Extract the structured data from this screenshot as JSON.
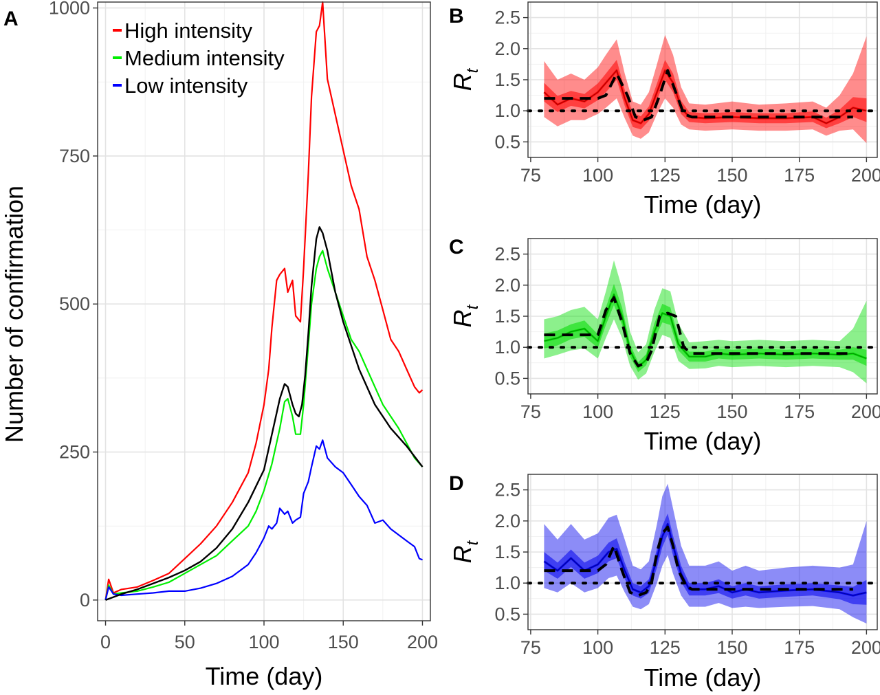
{
  "chart_data": [
    {
      "panel": "A",
      "type": "line",
      "xlabel": "Time (day)",
      "ylabel": "Number of confirmation",
      "xlim": [
        -5,
        205
      ],
      "ylim": [
        -35,
        1010
      ],
      "xticks": [
        0,
        50,
        100,
        150,
        200
      ],
      "yticks": [
        0,
        250,
        500,
        750,
        1000
      ],
      "grid": true,
      "legend_position": "top-left",
      "series": [
        {
          "name": "High intensity",
          "color": "#ff0000",
          "x": [
            0,
            2,
            5,
            10,
            20,
            30,
            40,
            50,
            60,
            70,
            80,
            90,
            95,
            100,
            103,
            105,
            108,
            110,
            113,
            115,
            118,
            120,
            123,
            125,
            128,
            130,
            133,
            135,
            137,
            140,
            145,
            150,
            155,
            160,
            165,
            170,
            175,
            180,
            185,
            190,
            195,
            198,
            200
          ],
          "y": [
            0,
            35,
            12,
            18,
            22,
            33,
            45,
            70,
            95,
            125,
            165,
            215,
            265,
            330,
            390,
            460,
            540,
            550,
            560,
            520,
            540,
            480,
            470,
            560,
            720,
            850,
            960,
            970,
            1010,
            880,
            820,
            760,
            700,
            660,
            580,
            540,
            490,
            440,
            420,
            390,
            360,
            350,
            355
          ]
        },
        {
          "name": "Medium intensity",
          "color": "#00ee00",
          "x": [
            0,
            2,
            5,
            10,
            20,
            30,
            40,
            50,
            60,
            70,
            80,
            90,
            95,
            100,
            105,
            110,
            113,
            115,
            118,
            120,
            123,
            125,
            128,
            130,
            133,
            135,
            137,
            140,
            145,
            150,
            155,
            160,
            165,
            170,
            175,
            180,
            185,
            190,
            195,
            200
          ],
          "y": [
            0,
            25,
            10,
            12,
            15,
            22,
            30,
            45,
            60,
            75,
            100,
            125,
            150,
            185,
            230,
            290,
            335,
            340,
            310,
            280,
            280,
            330,
            430,
            500,
            560,
            580,
            590,
            560,
            520,
            480,
            440,
            420,
            390,
            360,
            330,
            310,
            290,
            265,
            240,
            225
          ]
        },
        {
          "name": "Low intensity",
          "color": "#0000ff",
          "x": [
            0,
            2,
            5,
            10,
            20,
            30,
            40,
            50,
            60,
            70,
            80,
            90,
            95,
            100,
            103,
            105,
            108,
            110,
            113,
            115,
            118,
            120,
            123,
            125,
            128,
            130,
            133,
            135,
            137,
            140,
            145,
            150,
            155,
            160,
            165,
            170,
            175,
            180,
            185,
            190,
            195,
            198,
            200
          ],
          "y": [
            0,
            22,
            10,
            8,
            10,
            12,
            15,
            15,
            20,
            28,
            40,
            60,
            80,
            105,
            125,
            120,
            130,
            155,
            145,
            150,
            130,
            135,
            140,
            180,
            200,
            225,
            260,
            255,
            270,
            240,
            225,
            215,
            195,
            175,
            160,
            130,
            135,
            120,
            110,
            100,
            90,
            70,
            68
          ]
        },
        {
          "color": "#000000",
          "x": [
            0,
            10,
            20,
            30,
            40,
            50,
            60,
            70,
            80,
            90,
            100,
            105,
            110,
            113,
            115,
            118,
            120,
            122,
            124,
            126,
            128,
            130,
            133,
            135,
            137,
            140,
            145,
            150,
            160,
            170,
            180,
            190,
            200
          ],
          "y": [
            0,
            10,
            18,
            28,
            38,
            50,
            65,
            88,
            120,
            165,
            220,
            280,
            340,
            365,
            360,
            330,
            315,
            310,
            330,
            380,
            450,
            530,
            610,
            630,
            620,
            590,
            520,
            470,
            390,
            330,
            290,
            260,
            225
          ]
        }
      ]
    },
    {
      "panel": "B",
      "type": "line",
      "xlabel": "Time (day)",
      "ylabel_base": "R",
      "ylabel_sub": "t",
      "xlim": [
        74,
        204
      ],
      "ylim": [
        0.25,
        2.75
      ],
      "xticks": [
        75,
        100,
        125,
        150,
        175,
        200
      ],
      "yticks": [
        "0.5",
        "1.0",
        "1.5",
        "2.0",
        "2.5"
      ],
      "color": "#ff0000",
      "reference_line": 1.0,
      "true_rt": {
        "x": [
          80,
          85,
          100,
          103,
          107,
          111,
          114,
          117,
          120,
          123,
          126,
          129,
          132,
          135,
          150,
          170,
          180,
          190,
          195
        ],
        "y": [
          1.2,
          1.2,
          1.2,
          1.25,
          1.6,
          1.25,
          0.9,
          0.85,
          0.9,
          1.25,
          1.65,
          1.3,
          0.95,
          0.9,
          0.9,
          0.9,
          0.9,
          0.9,
          0.9
        ]
      },
      "estimate": {
        "x": [
          80,
          85,
          90,
          95,
          100,
          103,
          107,
          110,
          113,
          116,
          119,
          122,
          125,
          128,
          131,
          134,
          140,
          150,
          160,
          170,
          180,
          185,
          190,
          195,
          200
        ],
        "mean": [
          1.3,
          1.1,
          1.2,
          1.15,
          1.3,
          1.45,
          1.65,
          1.2,
          0.85,
          0.8,
          0.95,
          1.3,
          1.65,
          1.45,
          1.05,
          0.9,
          0.88,
          0.9,
          0.88,
          0.88,
          0.9,
          0.8,
          0.9,
          1.05,
          1.0
        ],
        "lo50": [
          1.15,
          0.98,
          1.08,
          1.04,
          1.17,
          1.3,
          1.5,
          1.08,
          0.74,
          0.7,
          0.84,
          1.17,
          1.5,
          1.3,
          0.95,
          0.82,
          0.8,
          0.82,
          0.8,
          0.8,
          0.82,
          0.72,
          0.8,
          0.9,
          0.82
        ],
        "hi50": [
          1.45,
          1.24,
          1.32,
          1.27,
          1.44,
          1.6,
          1.82,
          1.34,
          0.97,
          0.91,
          1.07,
          1.44,
          1.82,
          1.6,
          1.16,
          0.98,
          0.96,
          0.98,
          0.96,
          0.96,
          0.99,
          0.89,
          1.02,
          1.22,
          1.2
        ],
        "lo95": [
          0.9,
          0.75,
          0.85,
          0.85,
          0.95,
          1.05,
          1.2,
          0.88,
          0.6,
          0.55,
          0.65,
          0.95,
          1.2,
          1.05,
          0.78,
          0.7,
          0.68,
          0.7,
          0.68,
          0.68,
          0.7,
          0.6,
          0.68,
          0.7,
          0.48
        ],
        "hi95": [
          1.8,
          1.5,
          1.6,
          1.5,
          1.7,
          1.9,
          2.15,
          1.6,
          1.15,
          1.1,
          1.3,
          1.75,
          2.22,
          1.9,
          1.38,
          1.12,
          1.1,
          1.15,
          1.1,
          1.12,
          1.15,
          1.05,
          1.25,
          1.6,
          2.2
        ]
      }
    },
    {
      "panel": "C",
      "type": "line",
      "xlabel": "Time (day)",
      "ylabel_base": "R",
      "ylabel_sub": "t",
      "xlim": [
        74,
        204
      ],
      "ylim": [
        0.25,
        2.75
      ],
      "xticks": [
        75,
        100,
        125,
        150,
        175,
        200
      ],
      "yticks": [
        "0.5",
        "1.0",
        "1.5",
        "2.0",
        "2.5"
      ],
      "color": "#00dd00",
      "reference_line": 1.0,
      "true_rt": {
        "x": [
          80,
          85,
          98,
          100,
          103,
          106,
          109,
          112,
          115,
          118,
          120,
          123,
          126,
          129,
          132,
          135,
          150,
          170,
          180,
          195
        ],
        "y": [
          1.2,
          1.2,
          1.2,
          1.2,
          1.6,
          1.8,
          1.4,
          0.9,
          0.7,
          0.75,
          0.95,
          1.5,
          1.55,
          1.5,
          1.0,
          0.9,
          0.9,
          0.9,
          0.9,
          0.9
        ]
      },
      "estimate": {
        "x": [
          80,
          85,
          90,
          95,
          100,
          103,
          106,
          109,
          112,
          115,
          118,
          121,
          124,
          127,
          130,
          134,
          140,
          145,
          150,
          160,
          170,
          180,
          190,
          195,
          200
        ],
        "mean": [
          1.1,
          1.15,
          1.25,
          1.3,
          1.1,
          1.5,
          1.85,
          1.5,
          0.95,
          0.68,
          0.8,
          1.25,
          1.55,
          1.5,
          1.05,
          0.85,
          0.85,
          0.9,
          0.88,
          0.9,
          0.88,
          0.9,
          0.88,
          0.9,
          0.82
        ],
        "lo50": [
          0.98,
          1.03,
          1.13,
          1.17,
          0.99,
          1.36,
          1.68,
          1.36,
          0.85,
          0.6,
          0.71,
          1.12,
          1.4,
          1.36,
          0.95,
          0.77,
          0.77,
          0.82,
          0.8,
          0.82,
          0.8,
          0.82,
          0.8,
          0.8,
          0.7
        ],
        "hi50": [
          1.22,
          1.27,
          1.37,
          1.43,
          1.21,
          1.64,
          2.02,
          1.64,
          1.05,
          0.76,
          0.89,
          1.38,
          1.7,
          1.64,
          1.15,
          0.93,
          0.93,
          0.98,
          0.96,
          0.98,
          0.96,
          0.98,
          0.96,
          1.0,
          0.96
        ],
        "lo95": [
          0.82,
          0.88,
          0.95,
          0.98,
          0.82,
          1.15,
          1.45,
          1.15,
          0.7,
          0.48,
          0.58,
          0.92,
          1.2,
          1.15,
          0.78,
          0.65,
          0.66,
          0.7,
          0.68,
          0.7,
          0.68,
          0.7,
          0.68,
          0.6,
          0.42
        ],
        "hi95": [
          1.45,
          1.5,
          1.6,
          1.65,
          1.45,
          1.9,
          2.4,
          1.95,
          1.25,
          0.92,
          1.05,
          1.6,
          1.95,
          1.9,
          1.38,
          1.08,
          1.1,
          1.12,
          1.1,
          1.12,
          1.1,
          1.12,
          1.1,
          1.3,
          1.75
        ]
      }
    },
    {
      "panel": "D",
      "type": "line",
      "xlabel": "Time (day)",
      "ylabel_base": "R",
      "ylabel_sub": "t",
      "xlim": [
        74,
        204
      ],
      "ylim": [
        0.25,
        2.75
      ],
      "xticks": [
        75,
        100,
        125,
        150,
        175,
        200
      ],
      "yticks": [
        "0.5",
        "1.0",
        "1.5",
        "2.0",
        "2.5"
      ],
      "color": "#0000ee",
      "reference_line": 1.0,
      "true_rt": {
        "x": [
          80,
          85,
          100,
          103,
          106,
          109,
          112,
          115,
          118,
          120,
          122,
          124,
          126,
          128,
          130,
          133,
          135,
          150,
          170,
          180,
          190,
          195
        ],
        "y": [
          1.2,
          1.2,
          1.2,
          1.3,
          1.6,
          1.2,
          0.85,
          0.8,
          0.85,
          1.0,
          1.5,
          1.8,
          1.9,
          1.6,
          1.2,
          0.95,
          0.9,
          0.9,
          0.9,
          0.9,
          0.9,
          0.9
        ]
      },
      "estimate": {
        "x": [
          80,
          85,
          90,
          95,
          100,
          104,
          107,
          110,
          113,
          116,
          119,
          122,
          124,
          126,
          128,
          131,
          134,
          140,
          145,
          150,
          155,
          160,
          170,
          180,
          190,
          195,
          200
        ],
        "mean": [
          1.35,
          1.2,
          1.4,
          1.2,
          1.3,
          1.5,
          1.55,
          1.2,
          0.9,
          0.85,
          0.95,
          1.4,
          1.75,
          1.95,
          1.6,
          1.15,
          0.9,
          0.9,
          0.95,
          0.85,
          0.9,
          0.85,
          0.88,
          0.9,
          0.85,
          0.8,
          0.85
        ],
        "lo50": [
          1.2,
          1.07,
          1.26,
          1.07,
          1.16,
          1.35,
          1.4,
          1.07,
          0.8,
          0.75,
          0.84,
          1.25,
          1.58,
          1.78,
          1.44,
          1.02,
          0.8,
          0.8,
          0.84,
          0.75,
          0.8,
          0.75,
          0.78,
          0.8,
          0.74,
          0.66,
          0.65
        ],
        "hi50": [
          1.5,
          1.33,
          1.54,
          1.33,
          1.44,
          1.65,
          1.72,
          1.33,
          1.0,
          0.95,
          1.06,
          1.55,
          1.92,
          2.12,
          1.76,
          1.28,
          1.0,
          1.0,
          1.06,
          0.95,
          1.0,
          0.95,
          0.98,
          1.0,
          0.96,
          0.94,
          1.05
        ],
        "lo95": [
          0.92,
          0.85,
          1.0,
          0.85,
          0.92,
          1.08,
          1.12,
          0.85,
          0.62,
          0.58,
          0.66,
          1.0,
          1.28,
          1.45,
          1.15,
          0.8,
          0.62,
          0.62,
          0.68,
          0.6,
          0.62,
          0.6,
          0.62,
          0.63,
          0.58,
          0.45,
          0.35
        ],
        "hi95": [
          1.95,
          1.7,
          1.95,
          1.7,
          1.8,
          2.05,
          2.1,
          1.7,
          1.28,
          1.22,
          1.35,
          1.95,
          2.4,
          2.6,
          2.2,
          1.6,
          1.28,
          1.28,
          1.35,
          1.2,
          1.28,
          1.2,
          1.25,
          1.28,
          1.25,
          1.3,
          2.0
        ]
      }
    }
  ]
}
